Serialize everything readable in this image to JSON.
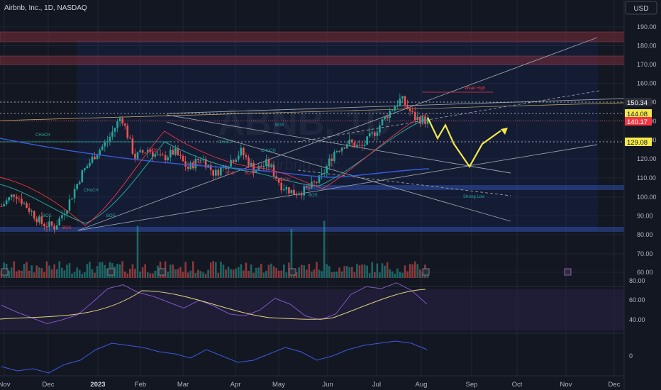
{
  "header": {
    "symbol": "Airbnb, Inc., 1D, NASDAQ",
    "currency": "USD"
  },
  "watermark": {
    "ticker": "ABNB, 1D",
    "name": "Airbnb, Inc."
  },
  "chart_data": {
    "type": "candlestick",
    "price_axis": {
      "ticks": [
        "190.00",
        "180.00",
        "170.00",
        "160.00",
        "150.00",
        "140.00",
        "130.00",
        "120.00",
        "110.00",
        "100.00",
        "90.00",
        "80.00",
        "70.00",
        "60.00"
      ],
      "range": [
        55,
        195
      ]
    },
    "price_markers": [
      {
        "label": "150.34",
        "value": 150.34,
        "style": "dark"
      },
      {
        "label": "144.08",
        "value": 144.08,
        "style": "yellow"
      },
      {
        "label": "140.17",
        "value": 140.17,
        "style": "red"
      },
      {
        "label": "129.08",
        "value": 129.08,
        "style": "yellow"
      }
    ],
    "time_axis": [
      "Nov",
      "Dec",
      "2023",
      "Feb",
      "Mar",
      "Apr",
      "May",
      "Jun",
      "Jul",
      "Aug",
      "Sep",
      "Oct",
      "Nov",
      "Dec"
    ],
    "annotations": [
      "CHoCH",
      "BOS",
      "BOS",
      "BOS",
      "CHoCH",
      "BOS",
      "BOS",
      "CHoCH",
      "BOS",
      "BOS",
      "CHoCH",
      "BOS",
      "CHoCH",
      "BOS",
      "Weak High",
      "Strong Low",
      "BOS"
    ],
    "swing_path": [
      142,
      131,
      138,
      128,
      116,
      128,
      135
    ],
    "close_path": [
      95,
      102,
      94,
      86,
      84,
      96,
      112,
      122,
      130,
      143,
      121,
      125,
      120,
      124,
      115,
      121,
      112,
      118,
      124,
      114,
      118,
      106,
      102,
      104,
      110,
      124,
      129,
      126,
      134,
      144,
      152,
      142,
      140
    ],
    "rsi": {
      "ticks": [
        "80.00",
        "60.00",
        "40.00"
      ],
      "range": [
        32,
        84
      ],
      "overbought": 70,
      "oversold": 30,
      "values": [
        55,
        48,
        42,
        36,
        40,
        45,
        58,
        72,
        76,
        68,
        64,
        58,
        52,
        60,
        54,
        46,
        44,
        50,
        62,
        56,
        44,
        40,
        46,
        66,
        74,
        72,
        78,
        70,
        56
      ]
    },
    "osc": {
      "ticks": [
        "0"
      ],
      "range": [
        -10,
        10
      ],
      "values": [
        -5,
        -7,
        -6,
        -8,
        -4,
        -2,
        3,
        6,
        5,
        4,
        2,
        1,
        -1,
        3,
        0,
        -3,
        -2,
        1,
        4,
        2,
        -2,
        0,
        3,
        5,
        6,
        7,
        6,
        3
      ]
    }
  }
}
